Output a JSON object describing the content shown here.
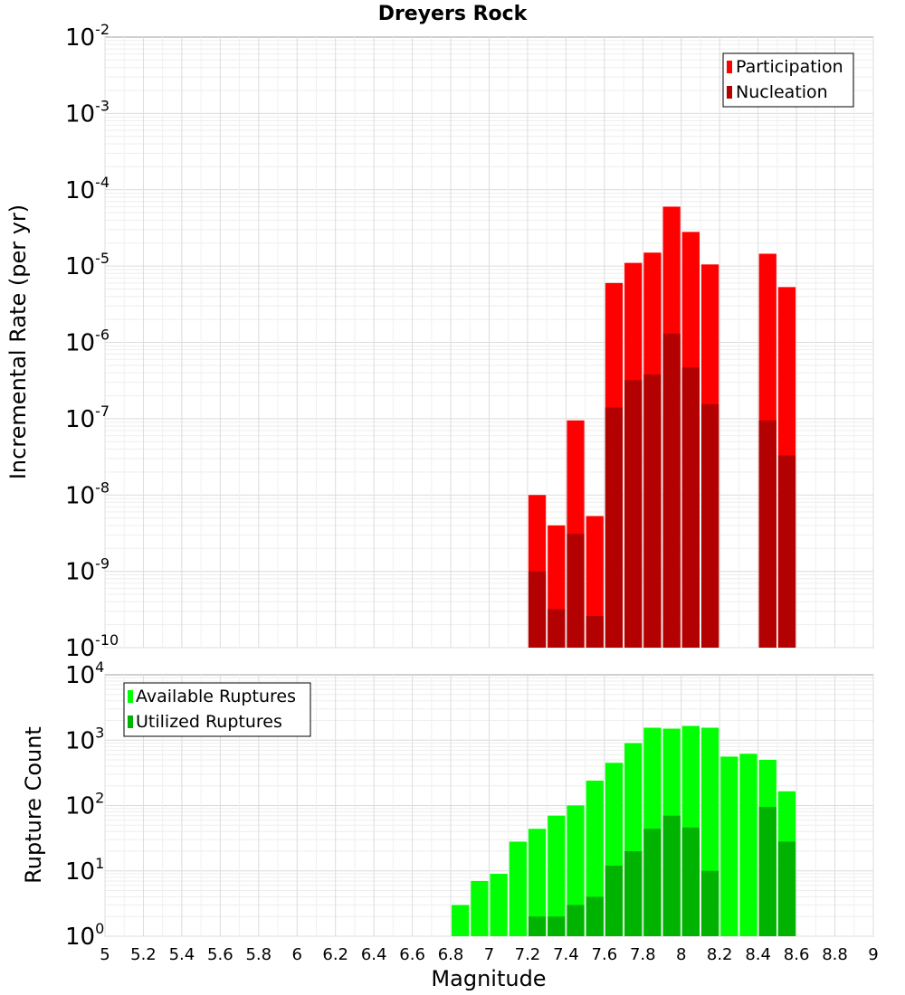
{
  "chart_data": [
    {
      "type": "bar",
      "title": "Dreyers Rock",
      "ylabel": "Incremental Rate (per yr)",
      "xlim": [
        5,
        9
      ],
      "ylim": [
        1e-10,
        0.01
      ],
      "yscale": "log",
      "grid": true,
      "legend_placement": "top-right",
      "ytick_exponents": [
        -10,
        -9,
        -8,
        -7,
        -6,
        -5,
        -4,
        -3,
        -2
      ],
      "bin_width": 0.1,
      "series": [
        {
          "name": "Participation",
          "color": "#ff0000",
          "x": [
            7.25,
            7.35,
            7.45,
            7.55,
            7.65,
            7.75,
            7.85,
            7.95,
            8.05,
            8.15,
            8.45,
            8.55
          ],
          "values": [
            1e-08,
            4e-09,
            9.5e-08,
            5.3e-09,
            6e-06,
            1.1e-05,
            1.5e-05,
            6e-05,
            2.8e-05,
            1.05e-05,
            1.45e-05,
            5.3e-06
          ]
        },
        {
          "name": "Nucleation",
          "color": "#b30000",
          "x": [
            7.25,
            7.35,
            7.45,
            7.55,
            7.65,
            7.75,
            7.85,
            7.95,
            8.05,
            8.15,
            8.45,
            8.55
          ],
          "values": [
            1e-09,
            3.2e-10,
            3.1e-09,
            2.6e-10,
            1.4e-07,
            3.2e-07,
            3.8e-07,
            1.3e-06,
            4.7e-07,
            1.55e-07,
            9.5e-08,
            3.3e-08
          ]
        }
      ]
    },
    {
      "type": "bar",
      "xlabel": "Magnitude",
      "ylabel": "Rupture Count",
      "xlim": [
        5,
        9
      ],
      "ylim": [
        1,
        10000.0
      ],
      "yscale": "log",
      "grid": true,
      "legend_placement": "top-left",
      "ytick_exponents": [
        0,
        1,
        2,
        3,
        4
      ],
      "xticks": [
        "5",
        "5.2",
        "5.4",
        "5.6",
        "5.8",
        "6",
        "6.2",
        "6.4",
        "6.6",
        "6.8",
        "7",
        "7.2",
        "7.4",
        "7.6",
        "7.8",
        "8",
        "8.2",
        "8.4",
        "8.6",
        "8.8",
        "9"
      ],
      "bin_width": 0.1,
      "series": [
        {
          "name": "Available Ruptures",
          "color": "#00ff00",
          "x": [
            6.35,
            6.65,
            6.85,
            6.95,
            7.05,
            7.15,
            7.25,
            7.35,
            7.45,
            7.55,
            7.65,
            7.75,
            7.85,
            7.95,
            8.05,
            8.15,
            8.25,
            8.35,
            8.45,
            8.55
          ],
          "values": [
            1,
            1,
            3,
            7,
            9,
            28,
            44,
            70,
            100,
            240,
            450,
            900,
            1550,
            1500,
            1650,
            1550,
            560,
            620,
            500,
            165
          ]
        },
        {
          "name": "Utilized Ruptures",
          "color": "#00b300",
          "x": [
            7.15,
            7.25,
            7.35,
            7.45,
            7.55,
            7.65,
            7.75,
            7.85,
            7.95,
            8.05,
            8.15,
            8.45,
            8.55
          ],
          "values": [
            1,
            2,
            2,
            3,
            4,
            12,
            20,
            44,
            70,
            46,
            10,
            95,
            28
          ]
        }
      ]
    }
  ]
}
